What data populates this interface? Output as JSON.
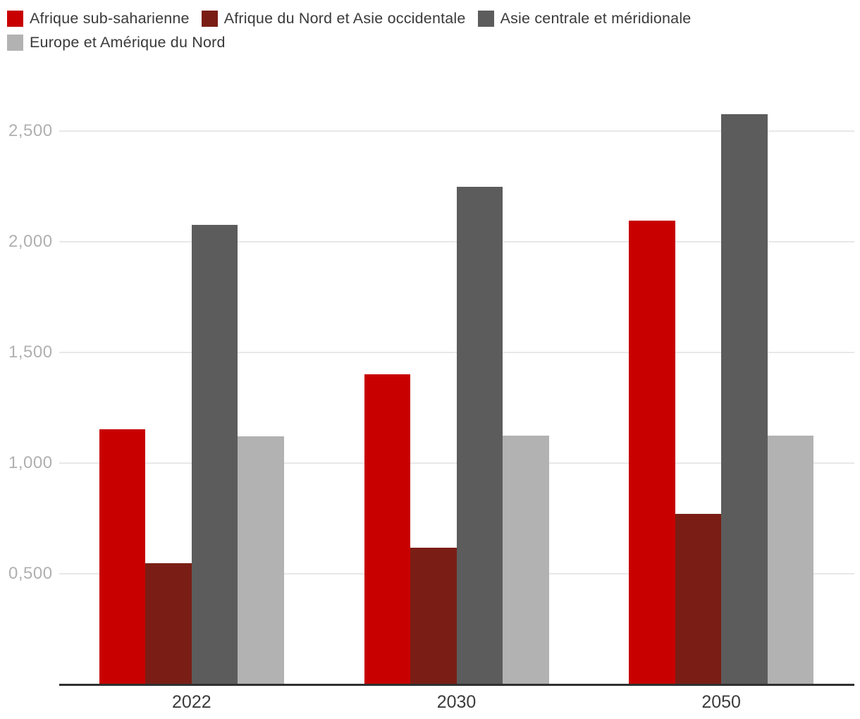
{
  "chart_data": {
    "type": "bar",
    "title": "",
    "categories": [
      "2022",
      "2030",
      "2050"
    ],
    "series": [
      {
        "name": "Afrique sub-saharienne",
        "color": "#c80000",
        "values": [
          1.152,
          1.401,
          2.094
        ]
      },
      {
        "name": "Afrique du Nord et Asie occidentale",
        "color": "#7a1e15",
        "values": [
          0.549,
          0.617,
          0.771
        ]
      },
      {
        "name": "Asie centrale et méridionale",
        "color": "#5c5c5c",
        "values": [
          2.075,
          2.248,
          2.575
        ]
      },
      {
        "name": "Europe et Amérique du Nord",
        "color": "#b3b2b2",
        "values": [
          1.12,
          1.125,
          1.125
        ]
      }
    ],
    "x_axis": {
      "labels": [
        "2022",
        "2030",
        "2050"
      ]
    },
    "y_axis": {
      "ticks": [
        {
          "value": 0.5,
          "label": "0,500"
        },
        {
          "value": 1.0,
          "label": "1,000"
        },
        {
          "value": 1.5,
          "label": "1,500"
        },
        {
          "value": 2.0,
          "label": "2,000"
        },
        {
          "value": 2.5,
          "label": "2,500"
        }
      ],
      "range": [
        0,
        2.75
      ],
      "gridlines": true
    },
    "legend_position": "top-left",
    "style": {
      "background": "#ffffff",
      "gridline_color": "#e8e8e8",
      "axis_line_color": "#303030",
      "y_tick_color": "#b0b0b0",
      "x_tick_color": "#3c3c3c",
      "legend_text_color": "#3a3a3a"
    }
  }
}
